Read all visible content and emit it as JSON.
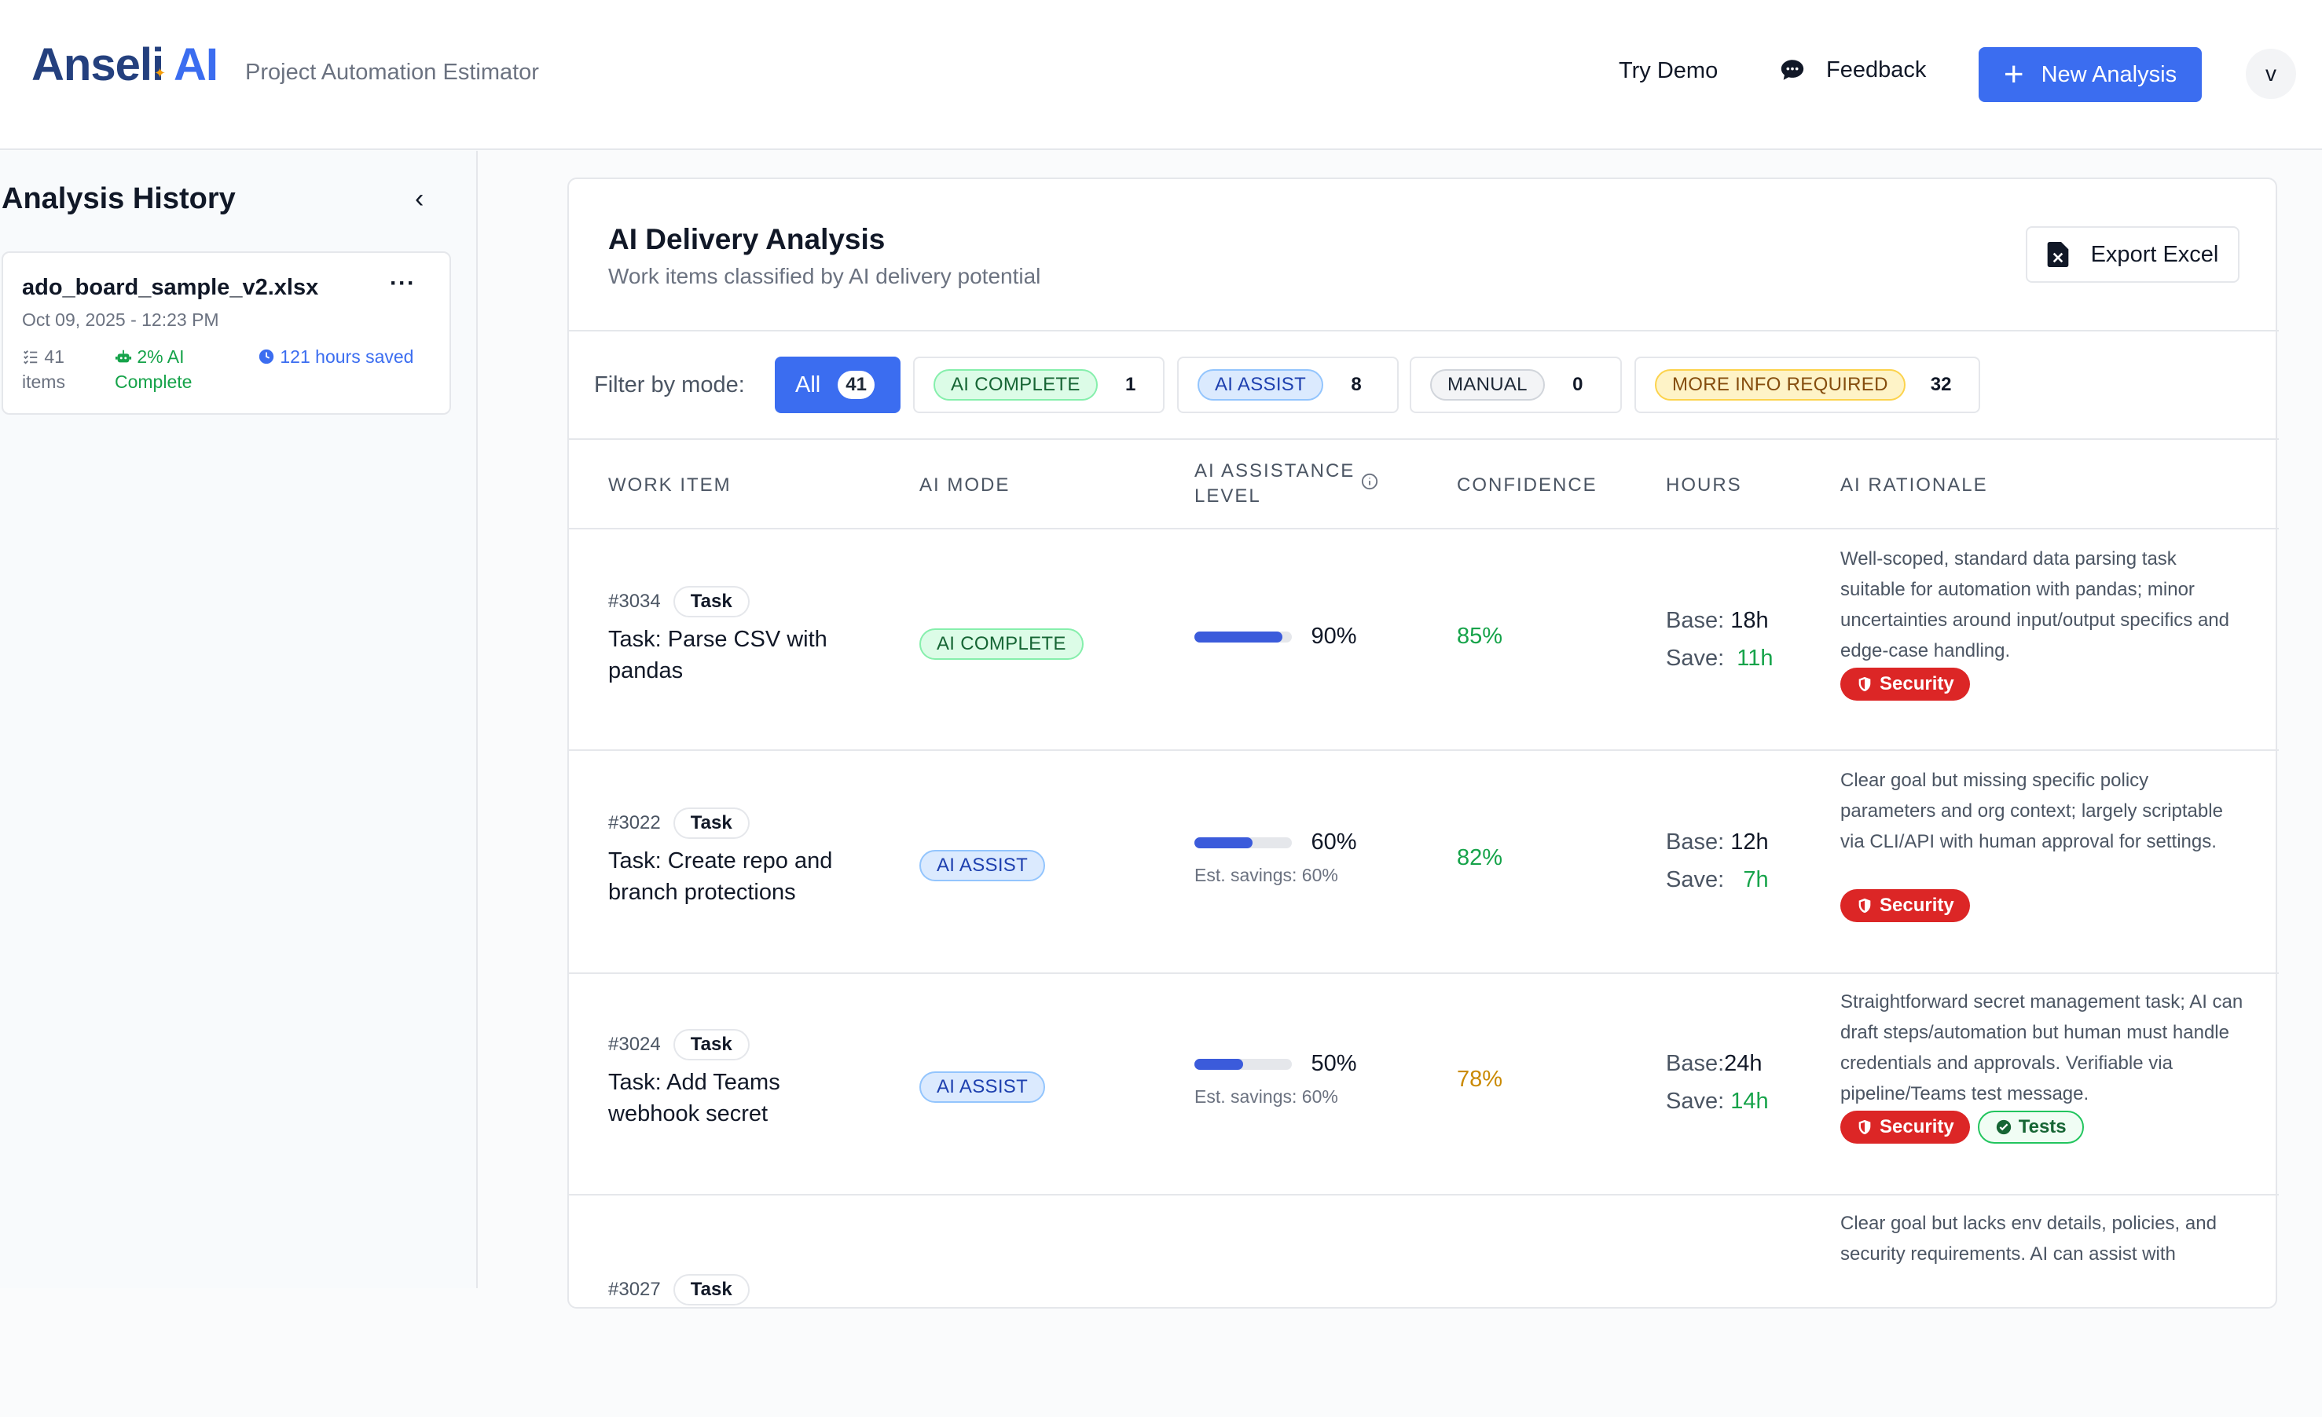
{
  "header": {
    "logo_main": "Anseli",
    "logo_ai": "AI",
    "subtitle": "Project Automation Estimator",
    "try_demo": "Try Demo",
    "feedback": "Feedback",
    "new_analysis": "New Analysis",
    "avatar": "v"
  },
  "sidebar": {
    "title": "Analysis History",
    "history": [
      {
        "name": "ado_board_sample_v2.xlsx",
        "date": "Oct 09, 2025 - 12:23 PM",
        "items": "41 items",
        "ai_complete": "2% AI Complete",
        "saved": "121 hours saved"
      }
    ]
  },
  "panel": {
    "title": "AI Delivery Analysis",
    "subtitle": "Work items classified by AI delivery potential",
    "export_label": "Export Excel",
    "filter_label": "Filter by mode:",
    "filters": [
      {
        "label": "All",
        "count": "41"
      },
      {
        "label": "AI COMPLETE",
        "count": "1"
      },
      {
        "label": "AI ASSIST",
        "count": "8"
      },
      {
        "label": "MANUAL",
        "count": "0"
      },
      {
        "label": "MORE INFO REQUIRED",
        "count": "32"
      }
    ],
    "columns": {
      "work_item": "WORK ITEM",
      "ai_mode": "AI MODE",
      "assist_level": "AI ASSISTANCE LEVEL",
      "confidence": "CONFIDENCE",
      "hours": "HOURS",
      "rationale": "AI RATIONALE"
    },
    "rows": [
      {
        "id": "#3034",
        "type": "Task",
        "title": "Task: Parse CSV with pandas",
        "mode": "AI COMPLETE",
        "level": 0.9,
        "level_label": "90%",
        "est": "",
        "confidence": "85%",
        "base_label": "Base:",
        "base": "18h",
        "save_label": "Save:",
        "save": "11h",
        "rationale": "Well-scoped, standard data parsing task suitable for automation with pandas; minor uncertainties around input/output specifics and edge-case handling.",
        "tags": [
          "Security"
        ]
      },
      {
        "id": "#3022",
        "type": "Task",
        "title": "Task: Create repo and branch protections",
        "mode": "AI ASSIST",
        "level": 0.6,
        "level_label": "60%",
        "est": "Est. savings: 60%",
        "confidence": "82%",
        "base_label": "Base:",
        "base": "12h",
        "save_label": "Save:",
        "save": "7h",
        "rationale": "Clear goal but missing specific policy parameters and org context; largely scriptable via CLI/API with human approval for settings.",
        "tags": [
          "Security"
        ]
      },
      {
        "id": "#3024",
        "type": "Task",
        "title": "Task: Add Teams webhook secret",
        "mode": "AI ASSIST",
        "level": 0.5,
        "level_label": "50%",
        "est": "Est. savings: 60%",
        "confidence": "78%",
        "base_label": "Base:",
        "base": "24h",
        "save_label": "Save:",
        "save": "14h",
        "rationale": "Straightforward secret management task; AI can draft steps/automation but human must handle credentials and approvals. Verifiable via pipeline/Teams test message.",
        "tags": [
          "Security",
          "Tests"
        ]
      },
      {
        "id": "#3027",
        "type": "Task",
        "title": "",
        "rationale": "Clear goal but lacks env details, policies, and security requirements. AI can assist with"
      }
    ]
  },
  "colors": {
    "accent": "#3b6df0",
    "brand": "#24407e",
    "success": "#16a34a",
    "warning": "#ca8a04",
    "danger": "#dc2626"
  }
}
